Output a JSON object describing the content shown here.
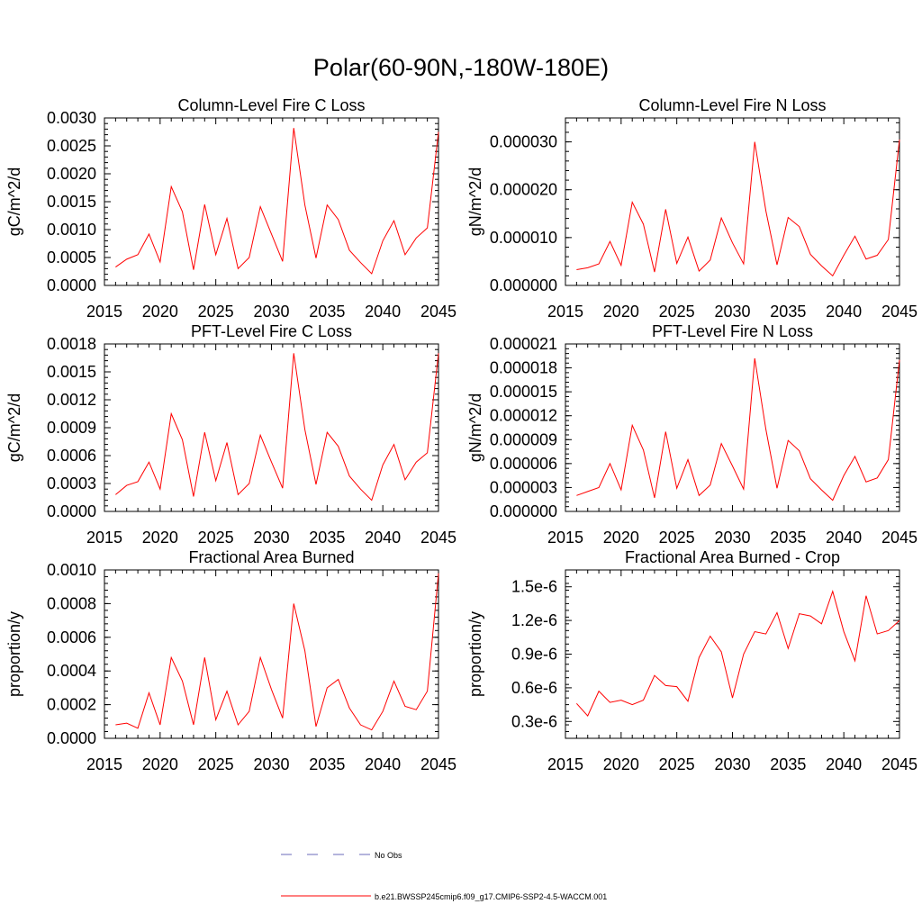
{
  "figure": {
    "title": "Polar(60-90N,-180W-180E)"
  },
  "legend": {
    "entries": [
      {
        "label": "No Obs",
        "style": "dashed",
        "color": "#6a6ab8"
      },
      {
        "label": "b.e21.BWSSP245cmip6.f09_g17.CMIP6-SSP2-4.5-WACCM.001",
        "style": "solid",
        "color": "#ff0000"
      }
    ]
  },
  "chart_data": [
    {
      "type": "line",
      "title": "Column-Level Fire C Loss",
      "xlabel": "",
      "ylabel": "gC/m^2/d",
      "xlim": [
        2015,
        2045
      ],
      "ylim": [
        0,
        0.003
      ],
      "xticks": [
        2015,
        2020,
        2025,
        2030,
        2035,
        2040,
        2045
      ],
      "xticklabels": [
        "2015",
        "2020",
        "2025",
        "2030",
        "2035",
        "2040",
        "2045"
      ],
      "yticks": [
        0,
        0.0005,
        0.001,
        0.0015,
        0.002,
        0.0025,
        0.003
      ],
      "yticklabels": [
        "0.0000",
        "0.0005",
        "0.0010",
        "0.0015",
        "0.0020",
        "0.0025",
        "0.0030"
      ],
      "x": [
        2016,
        2017,
        2018,
        2019,
        2020,
        2021,
        2022,
        2023,
        2024,
        2025,
        2026,
        2027,
        2028,
        2029,
        2030,
        2031,
        2032,
        2033,
        2034,
        2035,
        2036,
        2037,
        2038,
        2039,
        2040,
        2041,
        2042,
        2043,
        2044,
        2045
      ],
      "series": [
        {
          "name": "b.e21.BWSSP245cmip6.f09_g17.CMIP6-SSP2-4.5-WACCM.001",
          "values": [
            0.00033,
            0.00047,
            0.00055,
            0.00092,
            0.00042,
            0.00177,
            0.00132,
            0.00028,
            0.00145,
            0.00055,
            0.0012,
            0.0003,
            0.0005,
            0.00141,
            0.00092,
            0.00043,
            0.00282,
            0.00144,
            0.00049,
            0.00144,
            0.00118,
            0.00063,
            0.00041,
            0.00021,
            0.0008,
            0.00116,
            0.00055,
            0.00085,
            0.00103,
            0.00275
          ]
        }
      ]
    },
    {
      "type": "line",
      "title": "Column-Level Fire N Loss",
      "xlabel": "",
      "ylabel": "gN/m^2/d",
      "xlim": [
        2015,
        2045
      ],
      "ylim": [
        0,
        3.5e-05
      ],
      "xticks": [
        2015,
        2020,
        2025,
        2030,
        2035,
        2040,
        2045
      ],
      "xticklabels": [
        "2015",
        "2020",
        "2025",
        "2030",
        "2035",
        "2040",
        "2045"
      ],
      "yticks": [
        0,
        1e-05,
        2e-05,
        3e-05
      ],
      "yticklabels": [
        "0.000000",
        "0.000010",
        "0.000020",
        "0.000030"
      ],
      "x": [
        2016,
        2017,
        2018,
        2019,
        2020,
        2021,
        2022,
        2023,
        2024,
        2025,
        2026,
        2027,
        2028,
        2029,
        2030,
        2031,
        2032,
        2033,
        2034,
        2035,
        2036,
        2037,
        2038,
        2039,
        2040,
        2041,
        2042,
        2043,
        2044,
        2045
      ],
      "series": [
        {
          "name": "b.e21.BWSSP245cmip6.f09_g17.CMIP6-SSP2-4.5-WACCM.001",
          "values": [
            3.3e-06,
            3.7e-06,
            4.5e-06,
            9.2e-06,
            4.2e-06,
            1.74e-05,
            1.28e-05,
            2.8e-06,
            1.59e-05,
            4.6e-06,
            1.01e-05,
            3e-06,
            5.3e-06,
            1.41e-05,
            8.9e-06,
            4.5e-06,
            3e-05,
            1.56e-05,
            4.3e-06,
            1.42e-05,
            1.23e-05,
            6.5e-06,
            4.1e-06,
            2e-06,
            6.3e-06,
            1.03e-05,
            5.5e-06,
            6.3e-06,
            9.6e-06,
            3.05e-05
          ]
        }
      ]
    },
    {
      "type": "line",
      "title": "PFT-Level Fire C Loss",
      "xlabel": "",
      "ylabel": "gC/m^2/d",
      "xlim": [
        2015,
        2045
      ],
      "ylim": [
        0,
        0.0018
      ],
      "xticks": [
        2015,
        2020,
        2025,
        2030,
        2035,
        2040,
        2045
      ],
      "xticklabels": [
        "2015",
        "2020",
        "2025",
        "2030",
        "2035",
        "2040",
        "2045"
      ],
      "yticks": [
        0,
        0.0003,
        0.0006,
        0.0009,
        0.0012,
        0.0015,
        0.0018
      ],
      "yticklabels": [
        "0.0000",
        "0.0003",
        "0.0006",
        "0.0009",
        "0.0012",
        "0.0015",
        "0.0018"
      ],
      "x": [
        2016,
        2017,
        2018,
        2019,
        2020,
        2021,
        2022,
        2023,
        2024,
        2025,
        2026,
        2027,
        2028,
        2029,
        2030,
        2031,
        2032,
        2033,
        2034,
        2035,
        2036,
        2037,
        2038,
        2039,
        2040,
        2041,
        2042,
        2043,
        2044,
        2045
      ],
      "series": [
        {
          "name": "b.e21.BWSSP245cmip6.f09_g17.CMIP6-SSP2-4.5-WACCM.001",
          "values": [
            0.00018,
            0.00028,
            0.00032,
            0.00053,
            0.00024,
            0.00105,
            0.00077,
            0.00016,
            0.00085,
            0.00033,
            0.00074,
            0.00018,
            0.0003,
            0.00082,
            0.00053,
            0.00025,
            0.0017,
            0.00088,
            0.00029,
            0.00085,
            0.0007,
            0.00038,
            0.00024,
            0.00012,
            0.0005,
            0.00072,
            0.00034,
            0.00053,
            0.00063,
            0.0017
          ]
        }
      ]
    },
    {
      "type": "line",
      "title": "PFT-Level Fire N Loss",
      "xlabel": "",
      "ylabel": "gN/m^2/d",
      "xlim": [
        2015,
        2045
      ],
      "ylim": [
        0,
        2.1e-05
      ],
      "xticks": [
        2015,
        2020,
        2025,
        2030,
        2035,
        2040,
        2045
      ],
      "xticklabels": [
        "2015",
        "2020",
        "2025",
        "2030",
        "2035",
        "2040",
        "2045"
      ],
      "yticks": [
        0,
        3e-06,
        6e-06,
        9e-06,
        1.2e-05,
        1.5e-05,
        1.8e-05,
        2.1e-05
      ],
      "yticklabels": [
        "0.000000",
        "0.000003",
        "0.000006",
        "0.000009",
        "0.000012",
        "0.000015",
        "0.000018",
        "0.000021"
      ],
      "x": [
        2016,
        2017,
        2018,
        2019,
        2020,
        2021,
        2022,
        2023,
        2024,
        2025,
        2026,
        2027,
        2028,
        2029,
        2030,
        2031,
        2032,
        2033,
        2034,
        2035,
        2036,
        2037,
        2038,
        2039,
        2040,
        2041,
        2042,
        2043,
        2044,
        2045
      ],
      "series": [
        {
          "name": "b.e21.BWSSP245cmip6.f09_g17.CMIP6-SSP2-4.5-WACCM.001",
          "values": [
            2e-06,
            2.5e-06,
            3e-06,
            6e-06,
            2.7e-06,
            1.08e-05,
            7.7e-06,
            1.7e-06,
            1e-05,
            2.9e-06,
            6.5e-06,
            2e-06,
            3.3e-06,
            8.5e-06,
            5.7e-06,
            2.8e-06,
            1.92e-05,
            1.03e-05,
            2.9e-06,
            8.9e-06,
            7.6e-06,
            4.1e-06,
            2.7e-06,
            1.4e-06,
            4.5e-06,
            6.9e-06,
            3.7e-06,
            4.2e-06,
            6.5e-06,
            1.9e-05
          ]
        }
      ]
    },
    {
      "type": "line",
      "title": "Fractional Area Burned",
      "xlabel": "",
      "ylabel": "proportion/y",
      "xlim": [
        2015,
        2045
      ],
      "ylim": [
        0,
        0.001
      ],
      "xticks": [
        2015,
        2020,
        2025,
        2030,
        2035,
        2040,
        2045
      ],
      "xticklabels": [
        "2015",
        "2020",
        "2025",
        "2030",
        "2035",
        "2040",
        "2045"
      ],
      "yticks": [
        0,
        0.0002,
        0.0004,
        0.0006,
        0.0008,
        0.001
      ],
      "yticklabels": [
        "0.0000",
        "0.0002",
        "0.0004",
        "0.0006",
        "0.0008",
        "0.0010"
      ],
      "x": [
        2016,
        2017,
        2018,
        2019,
        2020,
        2021,
        2022,
        2023,
        2024,
        2025,
        2026,
        2027,
        2028,
        2029,
        2030,
        2031,
        2032,
        2033,
        2034,
        2035,
        2036,
        2037,
        2038,
        2039,
        2040,
        2041,
        2042,
        2043,
        2044,
        2045
      ],
      "series": [
        {
          "name": "b.e21.BWSSP245cmip6.f09_g17.CMIP6-SSP2-4.5-WACCM.001",
          "values": [
            8e-05,
            9e-05,
            6e-05,
            0.00027,
            8e-05,
            0.00048,
            0.00034,
            8e-05,
            0.00048,
            0.00011,
            0.00028,
            8e-05,
            0.00016,
            0.00048,
            0.00029,
            0.00012,
            0.0008,
            0.00052,
            7e-05,
            0.0003,
            0.00035,
            0.00018,
            8e-05,
            5e-05,
            0.00016,
            0.00034,
            0.00019,
            0.00017,
            0.00028,
            0.00098
          ]
        }
      ]
    },
    {
      "type": "line",
      "title": "Fractional Area Burned - Crop",
      "xlabel": "",
      "ylabel": "proportion/y",
      "xlim": [
        2015,
        2045
      ],
      "ylim": [
        1.5e-07,
        1.65e-06
      ],
      "xticks": [
        2015,
        2020,
        2025,
        2030,
        2035,
        2040,
        2045
      ],
      "xticklabels": [
        "2015",
        "2020",
        "2025",
        "2030",
        "2035",
        "2040",
        "2045"
      ],
      "yticks": [
        3e-07,
        6e-07,
        9e-07,
        1.2e-06,
        1.5e-06
      ],
      "yticklabels": [
        "0.3e-6",
        "0.6e-6",
        "0.9e-6",
        "1.2e-6",
        "1.5e-6"
      ],
      "x": [
        2016,
        2017,
        2018,
        2019,
        2020,
        2021,
        2022,
        2023,
        2024,
        2025,
        2026,
        2027,
        2028,
        2029,
        2030,
        2031,
        2032,
        2033,
        2034,
        2035,
        2036,
        2037,
        2038,
        2039,
        2040,
        2041,
        2042,
        2043,
        2044,
        2045
      ],
      "series": [
        {
          "name": "b.e21.BWSSP245cmip6.f09_g17.CMIP6-SSP2-4.5-WACCM.001",
          "values": [
            4.6e-07,
            3.5e-07,
            5.7e-07,
            4.7e-07,
            4.9e-07,
            4.5e-07,
            4.9e-07,
            7.1e-07,
            6.2e-07,
            6.1e-07,
            4.8e-07,
            8.7e-07,
            1.06e-06,
            9.2e-07,
            5.1e-07,
            9e-07,
            1.1e-06,
            1.08e-06,
            1.27e-06,
            9.5e-07,
            1.26e-06,
            1.24e-06,
            1.17e-06,
            1.46e-06,
            1.1e-06,
            8.4e-07,
            1.42e-06,
            1.08e-06,
            1.11e-06,
            1.2e-06
          ]
        }
      ]
    }
  ]
}
